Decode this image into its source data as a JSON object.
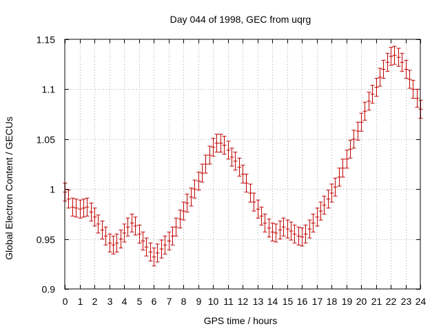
{
  "chart_data": {
    "type": "line",
    "title": "Day 044 of 1998, GEC from uqrg",
    "xlabel": "GPS time / hours",
    "ylabel": "Global Electron Content / GECUs",
    "xlim": [
      0,
      24
    ],
    "ylim": [
      0.9,
      1.15
    ],
    "xticks": [
      "0",
      "1",
      "2",
      "3",
      "4",
      "5",
      "6",
      "7",
      "8",
      "9",
      "10",
      "11",
      "12",
      "13",
      "14",
      "15",
      "16",
      "17",
      "18",
      "19",
      "20",
      "21",
      "22",
      "23",
      "24"
    ],
    "xtick_values": [
      0,
      1,
      2,
      3,
      4,
      5,
      6,
      7,
      8,
      9,
      10,
      11,
      12,
      13,
      14,
      15,
      16,
      17,
      18,
      19,
      20,
      21,
      22,
      23,
      24
    ],
    "yticks": [
      "0.9",
      "0.95",
      "1",
      "1.05",
      "1.1",
      "1.15"
    ],
    "ytick_values": [
      0.9,
      0.95,
      1.0,
      1.05,
      1.1,
      1.15
    ],
    "grid": true,
    "series": [
      {
        "name": "GEC",
        "color": "#c00000",
        "error": 0.009,
        "x": [
          0,
          0.25,
          0.5,
          0.75,
          1,
          1.25,
          1.5,
          1.75,
          2,
          2.25,
          2.5,
          2.75,
          3,
          3.25,
          3.5,
          3.75,
          4,
          4.25,
          4.5,
          4.75,
          5,
          5.25,
          5.5,
          5.75,
          6,
          6.25,
          6.5,
          6.75,
          7,
          7.25,
          7.5,
          7.75,
          8,
          8.25,
          8.5,
          8.75,
          9,
          9.25,
          9.5,
          9.75,
          10,
          10.25,
          10.5,
          10.75,
          11,
          11.25,
          11.5,
          11.75,
          12,
          12.25,
          12.5,
          12.75,
          13,
          13.25,
          13.5,
          13.75,
          14,
          14.25,
          14.5,
          14.75,
          15,
          15.25,
          15.5,
          15.75,
          16,
          16.25,
          16.5,
          16.75,
          17,
          17.25,
          17.5,
          17.75,
          18,
          18.25,
          18.5,
          18.75,
          19,
          19.25,
          19.5,
          19.75,
          20,
          20.25,
          20.5,
          20.75,
          21,
          21.25,
          21.5,
          21.75,
          22,
          22.25,
          22.5,
          22.75,
          23,
          23.25,
          23.5,
          23.75,
          24
        ],
        "values": [
          0.997,
          0.99,
          0.982,
          0.981,
          0.98,
          0.981,
          0.982,
          0.977,
          0.972,
          0.965,
          0.959,
          0.953,
          0.946,
          0.944,
          0.946,
          0.95,
          0.956,
          0.962,
          0.966,
          0.963,
          0.955,
          0.948,
          0.942,
          0.937,
          0.932,
          0.936,
          0.94,
          0.944,
          0.948,
          0.953,
          0.962,
          0.97,
          0.978,
          0.986,
          0.992,
          1.0,
          1.008,
          1.016,
          1.025,
          1.034,
          1.042,
          1.046,
          1.046,
          1.044,
          1.039,
          1.032,
          1.028,
          1.022,
          1.015,
          1.006,
          0.996,
          0.987,
          0.98,
          0.973,
          0.966,
          0.961,
          0.957,
          0.956,
          0.959,
          0.962,
          0.96,
          0.958,
          0.955,
          0.953,
          0.952,
          0.955,
          0.96,
          0.966,
          0.972,
          0.978,
          0.984,
          0.99,
          0.996,
          1.002,
          1.012,
          1.021,
          1.03,
          1.04,
          1.05,
          1.058,
          1.067,
          1.078,
          1.088,
          1.095,
          1.102,
          1.112,
          1.12,
          1.127,
          1.133,
          1.134,
          1.132,
          1.127,
          1.12,
          1.11,
          1.1,
          1.091,
          1.08
        ]
      }
    ]
  }
}
